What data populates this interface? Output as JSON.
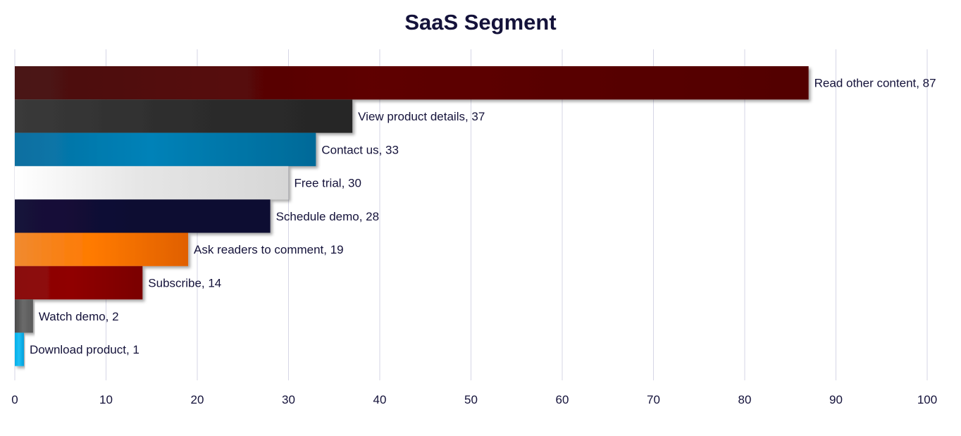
{
  "chart_data": {
    "type": "bar",
    "orientation": "horizontal",
    "title": "SaaS Segment",
    "xlabel": "",
    "ylabel": "",
    "xlim": [
      0,
      100
    ],
    "x_ticks": [
      0,
      10,
      20,
      30,
      40,
      50,
      60,
      70,
      80,
      90,
      100
    ],
    "grid": "vertical",
    "legend": "none",
    "categories": [
      "Read other content",
      "View product details",
      "Contact us",
      "Free trial",
      "Schedule demo",
      "Ask readers to comment",
      "Subscribe",
      "Watch demo",
      "Download product"
    ],
    "values": [
      87,
      37,
      33,
      30,
      28,
      19,
      14,
      2,
      1
    ],
    "data_labels": [
      "Read other content, 87",
      "View product details, 37",
      "Contact us, 33",
      "Free trial, 30",
      "Schedule demo, 28",
      "Ask readers to comment, 19",
      "Subscribe, 14",
      "Watch demo, 2",
      "Download product, 1"
    ],
    "colors": [
      [
        "#4a1414",
        "#5e0000",
        "#520000"
      ],
      [
        "#3a3a3a",
        "#2e2e2e",
        "#262626"
      ],
      [
        "#0a6fa0",
        "#0082b8",
        "#006a98"
      ],
      [
        "#ffffff",
        "#e6e6e6",
        "#d6d6d6"
      ],
      [
        "#14123a",
        "#100e33",
        "#0e0c30"
      ],
      [
        "#f08a30",
        "#ff7a00",
        "#e06000"
      ],
      [
        "#8a1010",
        "#900000",
        "#7a0000"
      ],
      [
        "#4a4a4a",
        "#6a6a6a",
        "#5a5a5a"
      ],
      [
        "#00aee8",
        "#1ec0f5",
        "#00a0dc"
      ]
    ],
    "gridline_color": "#d6d6e6",
    "text_color": "#14123a"
  }
}
